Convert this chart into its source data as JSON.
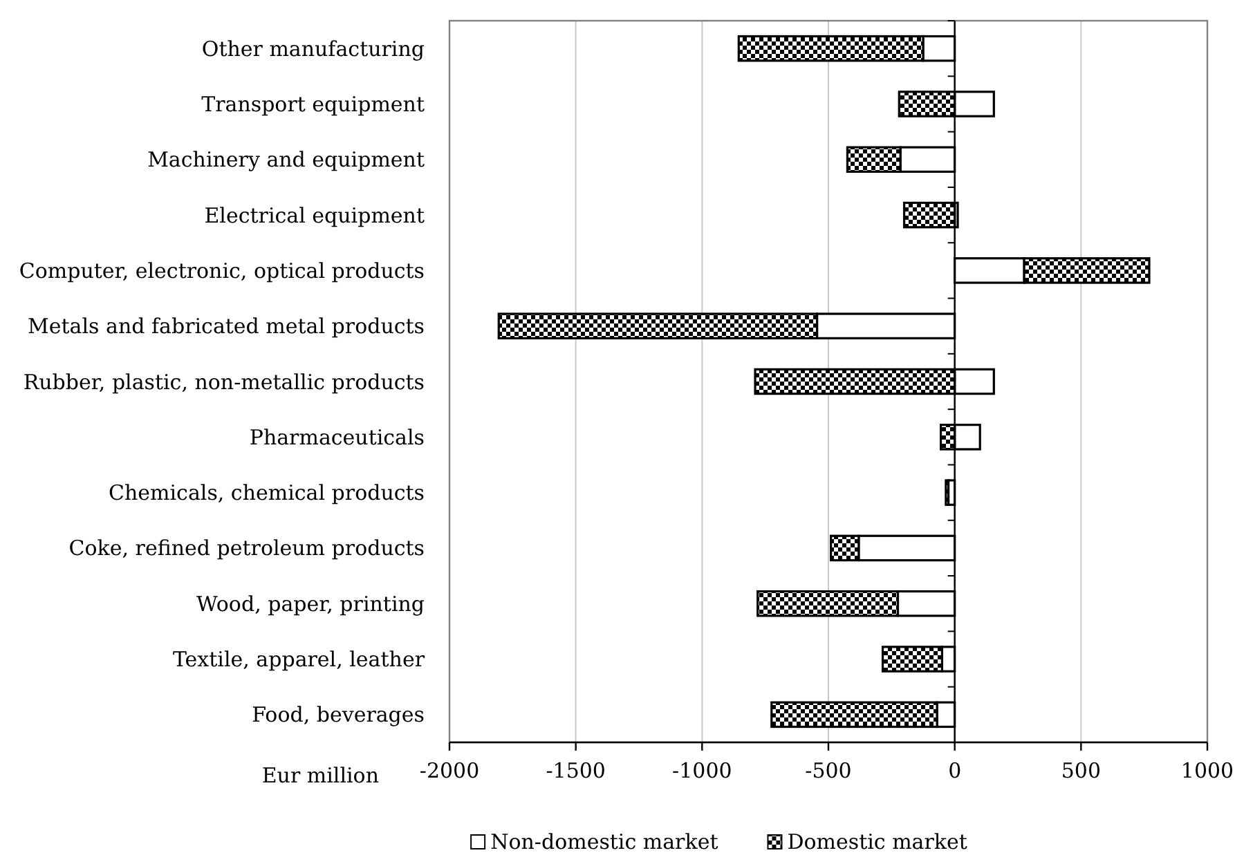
{
  "chart_data": {
    "type": "bar",
    "orientation": "horizontal",
    "stacked": true,
    "categories": [
      "Other manufacturing",
      "Transport equipment",
      "Machinery and equipment",
      "Electrical equipment",
      "Computer, electronic, optical products",
      "Metals and fabricated metal products",
      "Rubber, plastic, non-metallic products",
      "Pharmaceuticals",
      "Chemicals, chemical products",
      "Coke, refined petroleum products",
      "Wood, paper, printing",
      "Textile, apparel, leather",
      "Food, beverages"
    ],
    "series": [
      {
        "name": "Non-domestic market",
        "color": "#ffffff",
        "values": [
          -125,
          155,
          -215,
          12,
          275,
          -545,
          155,
          100,
          -25,
          -380,
          -225,
          -50,
          -70
        ]
      },
      {
        "name": "Domestic market",
        "color": "#000000",
        "values": [
          -730,
          -220,
          -210,
          -200,
          495,
          -1260,
          -790,
          -55,
          -10,
          -110,
          -555,
          -235,
          -655
        ]
      }
    ],
    "xlabel": "Eur million",
    "xlim": [
      -2000,
      1000
    ],
    "xticks": [
      -2000,
      -1500,
      -1000,
      -500,
      0,
      500,
      1000
    ],
    "grid": "x",
    "legend": "bottom"
  }
}
